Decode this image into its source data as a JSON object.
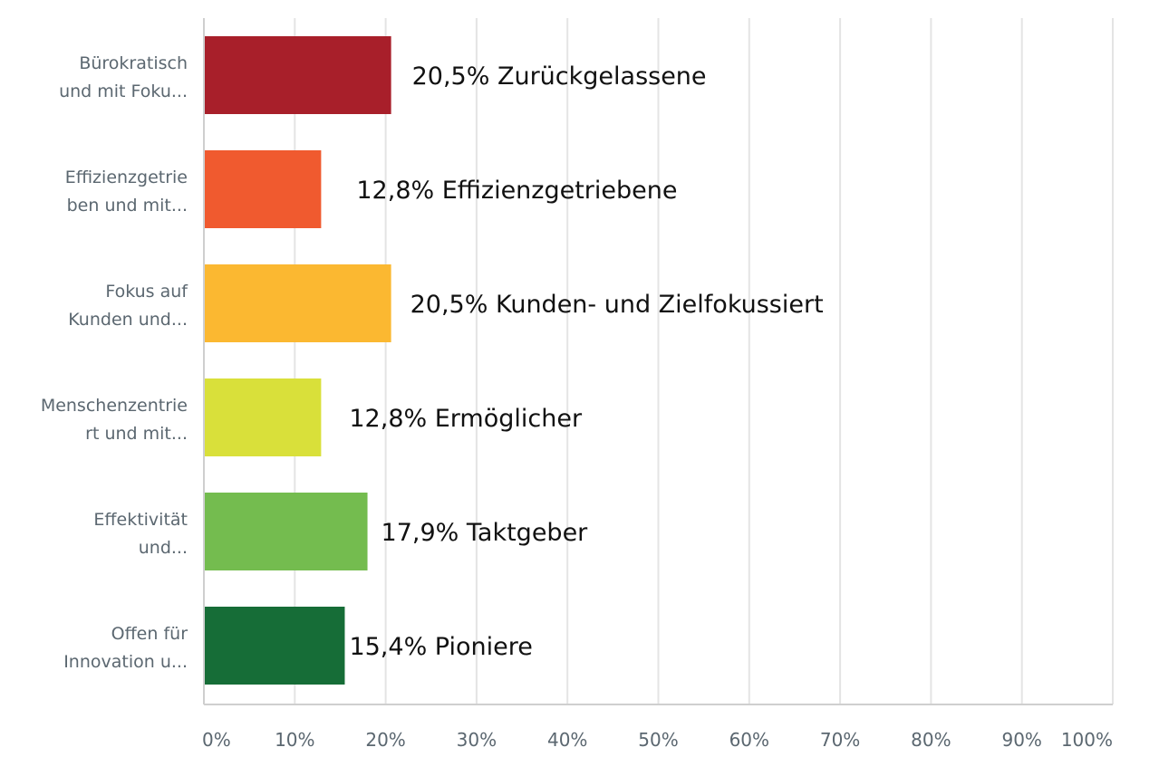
{
  "chart_data": {
    "type": "bar",
    "orientation": "horizontal",
    "title": "",
    "xlabel": "",
    "ylabel": "",
    "xlim": [
      0,
      100
    ],
    "grid": true,
    "legend": "none",
    "categories": [
      [
        "Bürokratisch",
        "und mit Foku..."
      ],
      [
        "Effizienzgetrie",
        "ben und mit..."
      ],
      [
        "Fokus auf",
        "Kunden und..."
      ],
      [
        "Menschenzentrie",
        "rt und mit..."
      ],
      [
        "Effektivität",
        "und..."
      ],
      [
        "Offen für",
        "Innovation u..."
      ]
    ],
    "values": [
      20.5,
      12.8,
      20.5,
      12.8,
      17.9,
      15.4
    ],
    "data_labels": [
      "20,5% Zurückgelassene",
      "12,8% Effizienzgetriebene",
      "20,5% Kunden- und Zielfokussiert",
      "12,8% Ermöglicher",
      "17,9% Taktgeber",
      "15,4% Pioniere"
    ],
    "colors": [
      "#a81f2a",
      "#f05a2f",
      "#fbb831",
      "#d9e03a",
      "#74bc4f",
      "#166d37"
    ],
    "x_ticks": [
      0,
      10,
      20,
      30,
      40,
      50,
      60,
      70,
      80,
      90,
      100
    ],
    "x_tick_labels": [
      "0%",
      "10%",
      "20%",
      "30%",
      "40%",
      "50%",
      "60%",
      "70%",
      "80%",
      "90%",
      "100%"
    ]
  }
}
